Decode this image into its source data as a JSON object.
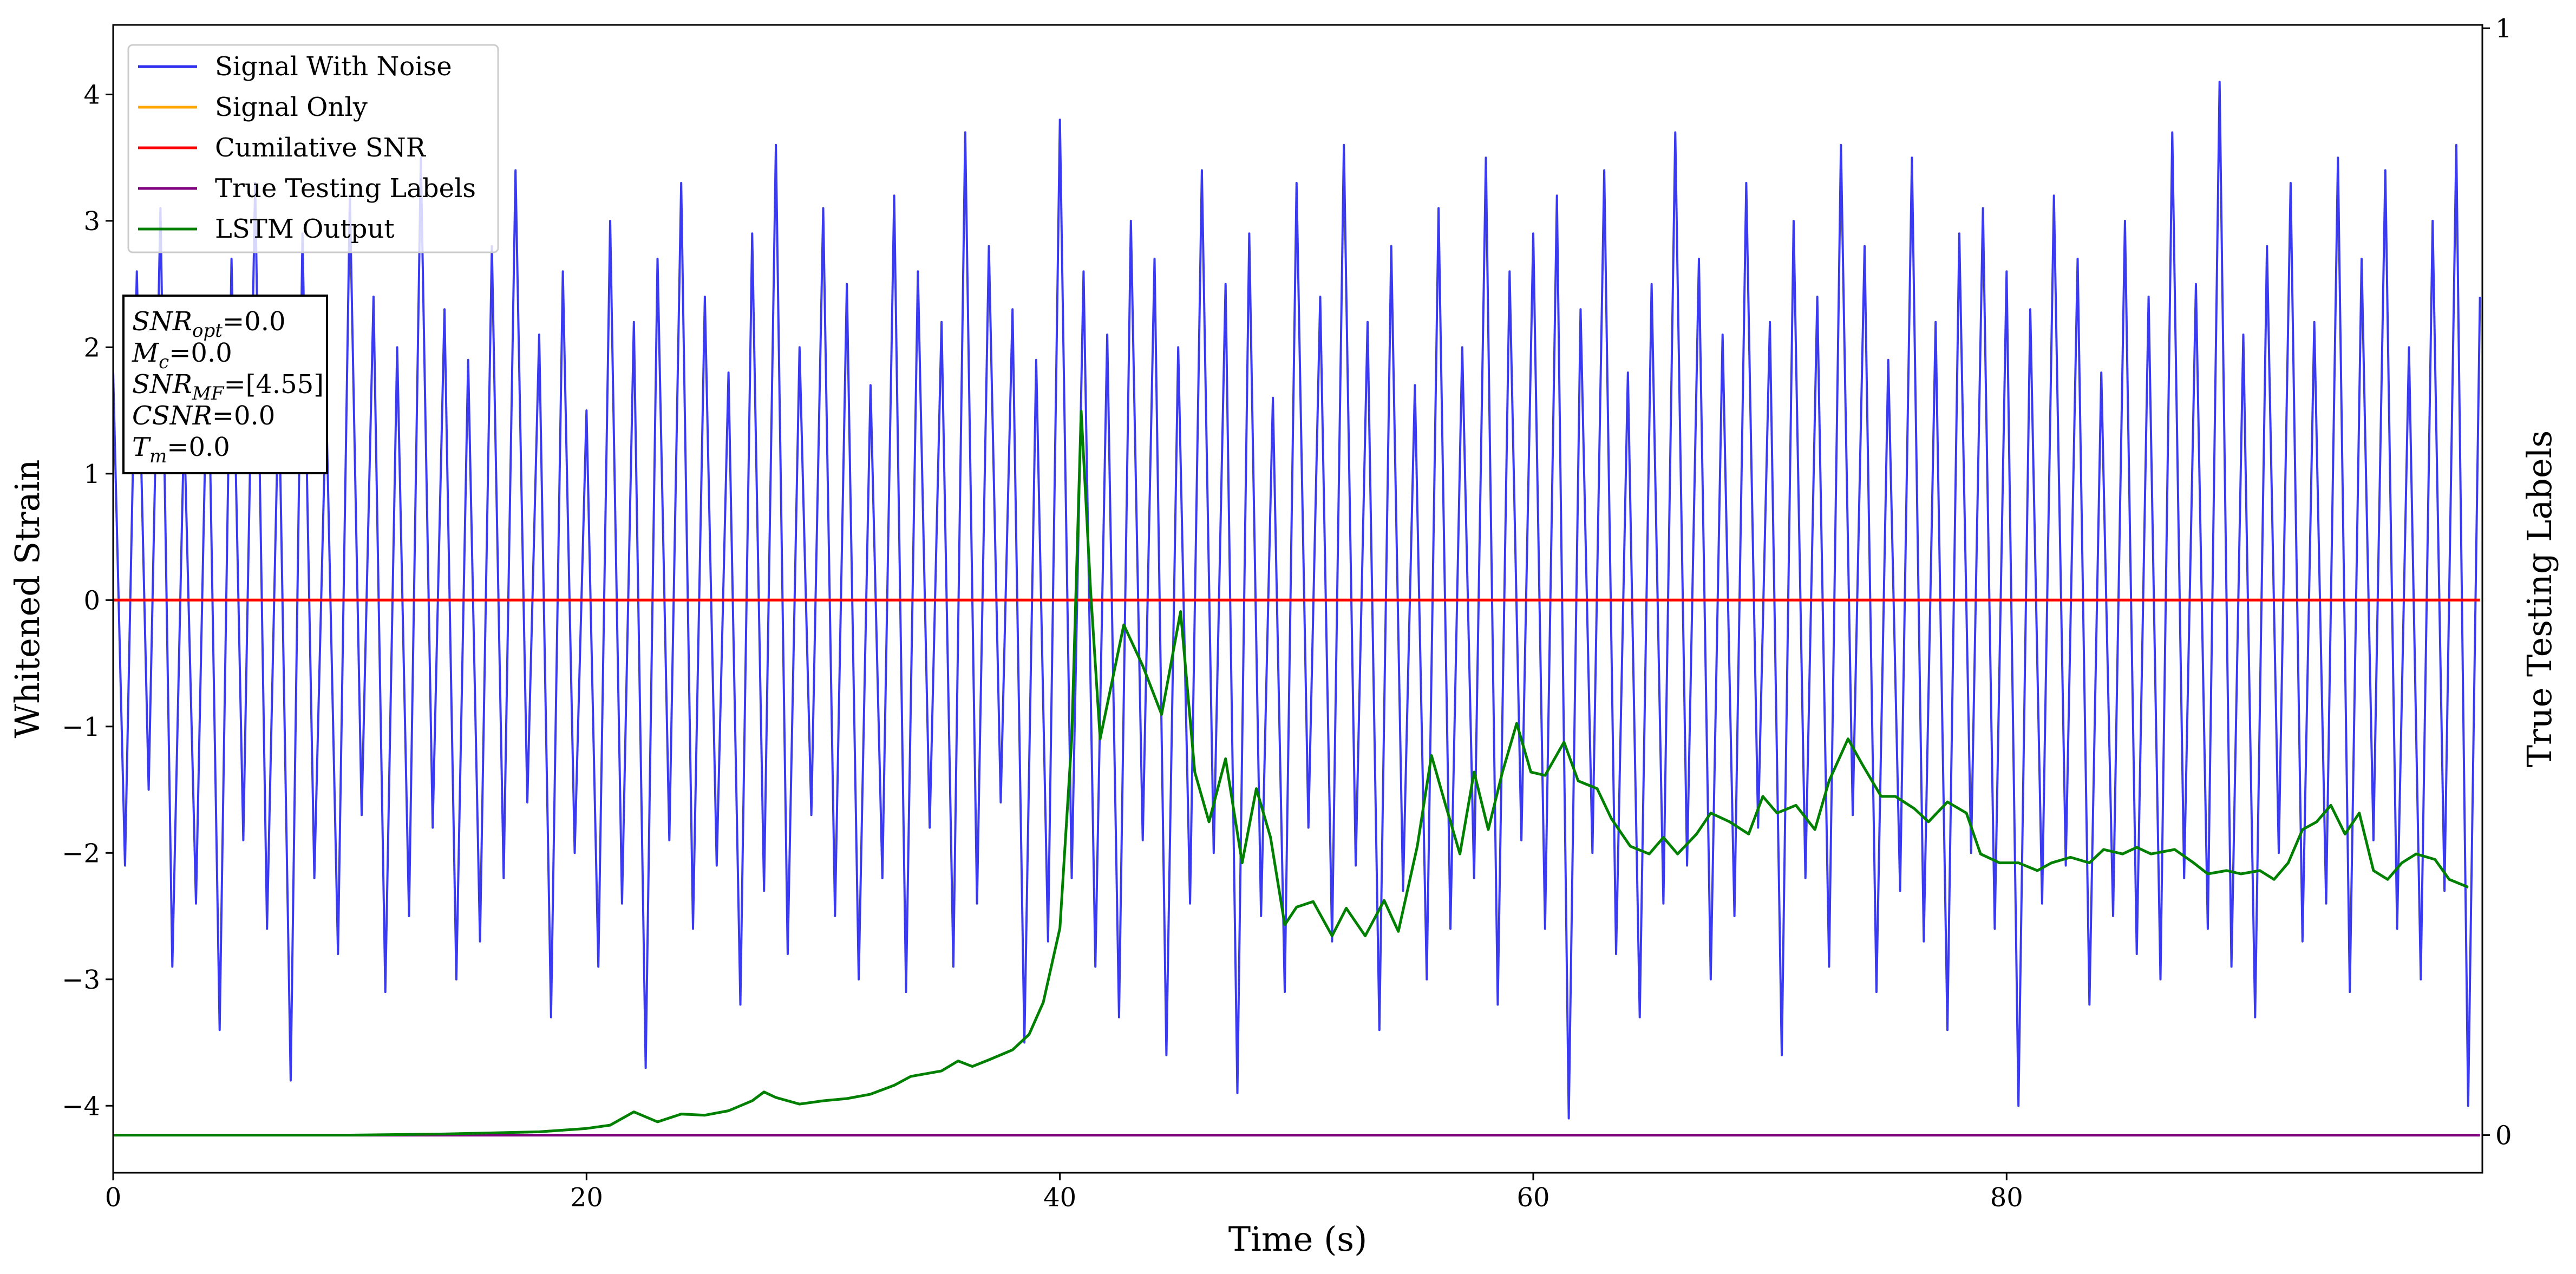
{
  "chart_data": {
    "type": "line",
    "xlabel": "Time (s)",
    "ylabel": "Whitened Strain",
    "y2label": "True Testing Labels",
    "xlim": [
      0,
      100.1
    ],
    "xticks": [
      0,
      20,
      40,
      60,
      80
    ],
    "ylim": [
      -4.53,
      4.55
    ],
    "yticks": [
      {
        "value": -4,
        "label": "−4"
      },
      {
        "value": -3,
        "label": "−3"
      },
      {
        "value": -2,
        "label": "−2"
      },
      {
        "value": -1,
        "label": "−1"
      },
      0,
      1,
      2,
      3,
      4
    ],
    "y2lim": [
      -0.034,
      1.003
    ],
    "y2ticks": [
      0,
      1
    ],
    "legend": "upper left",
    "annotation": [
      [
        "SNR",
        "opt",
        "=0.0"
      ],
      [
        "M",
        "c",
        "=0.0"
      ],
      [
        "SNR",
        "MF",
        "=[4.55]"
      ],
      [
        "CSNR",
        "=0.0"
      ],
      [
        "T",
        "m",
        "=0.0"
      ]
    ],
    "series": [
      {
        "name": "Signal With Noise",
        "color": "#2f2ff0",
        "axis": "y",
        "x": [
          0,
          0.5,
          1,
          1.5,
          2,
          2.5,
          3,
          3.5,
          4,
          4.5,
          5,
          5.5,
          6,
          6.5,
          7,
          7.5,
          8,
          8.5,
          9,
          9.5,
          10,
          10.5,
          11,
          11.5,
          12,
          12.5,
          13,
          13.5,
          14,
          14.5,
          15,
          15.5,
          16,
          16.5,
          17,
          17.5,
          18,
          18.5,
          19,
          19.5,
          20,
          20.5,
          21,
          21.5,
          22,
          22.5,
          23,
          23.5,
          24,
          24.5,
          25,
          25.5,
          26,
          26.5,
          27,
          27.5,
          28,
          28.5,
          29,
          29.5,
          30,
          30.5,
          31,
          31.5,
          32,
          32.5,
          33,
          33.5,
          34,
          34.5,
          35,
          35.5,
          36,
          36.5,
          37,
          37.5,
          38,
          38.5,
          39,
          39.5,
          40,
          40.5,
          41,
          41.5,
          42,
          42.5,
          43,
          43.5,
          44,
          44.5,
          45,
          45.5,
          46,
          46.5,
          47,
          47.5,
          48,
          48.5,
          49,
          49.5,
          50,
          50.5,
          51,
          51.5,
          52,
          52.5,
          53,
          53.5,
          54,
          54.5,
          55,
          55.5,
          56,
          56.5,
          57,
          57.5,
          58,
          58.5,
          59,
          59.5,
          60,
          60.5,
          61,
          61.5,
          62,
          62.5,
          63,
          63.5,
          64,
          64.5,
          65,
          65.5,
          66,
          66.5,
          67,
          67.5,
          68,
          68.5,
          69,
          69.5,
          70,
          70.5,
          71,
          71.5,
          72,
          72.5,
          73,
          73.5,
          74,
          74.5,
          75,
          75.5,
          76,
          76.5,
          77,
          77.5,
          78,
          78.5,
          79,
          79.5,
          80,
          80.5,
          81,
          81.5,
          82,
          82.5,
          83,
          83.5,
          84,
          84.5,
          85,
          85.5,
          86,
          86.5,
          87,
          87.5,
          88,
          88.5,
          89,
          89.5,
          90,
          90.5,
          91,
          91.5,
          92,
          92.5,
          93,
          93.5,
          94,
          94.5,
          95,
          95.5,
          96,
          96.5,
          97,
          97.5,
          98,
          98.5,
          99,
          99.5,
          100
        ],
        "values": [
          1.8,
          -2.1,
          2.6,
          -1.5,
          3.1,
          -2.9,
          1.4,
          -2.4,
          2.2,
          -3.4,
          2.7,
          -1.9,
          3.3,
          -2.6,
          1.7,
          -3.8,
          2.9,
          -2.2,
          1.6,
          -2.8,
          3.2,
          -1.7,
          2.4,
          -3.1,
          2.0,
          -2.5,
          3.5,
          -1.8,
          2.3,
          -3.0,
          1.9,
          -2.7,
          2.8,
          -2.2,
          3.4,
          -1.6,
          2.1,
          -3.3,
          2.6,
          -2.0,
          1.5,
          -2.9,
          3.0,
          -2.4,
          2.2,
          -3.7,
          2.7,
          -1.9,
          3.3,
          -2.6,
          2.4,
          -2.1,
          1.8,
          -3.2,
          2.9,
          -2.3,
          3.6,
          -2.8,
          2.0,
          -1.7,
          3.1,
          -2.5,
          2.5,
          -3.0,
          1.7,
          -2.2,
          3.2,
          -3.1,
          2.6,
          -1.8,
          2.2,
          -2.9,
          3.7,
          -2.4,
          2.8,
          -1.6,
          2.3,
          -3.5,
          1.9,
          -2.7,
          3.8,
          -2.2,
          2.6,
          -2.9,
          2.1,
          -3.3,
          3.0,
          -1.9,
          2.7,
          -3.6,
          2.0,
          -2.4,
          3.4,
          -2.0,
          2.5,
          -3.9,
          2.9,
          -2.5,
          1.6,
          -3.1,
          3.3,
          -1.8,
          2.4,
          -2.7,
          3.6,
          -2.1,
          2.2,
          -3.4,
          2.8,
          -2.3,
          1.7,
          -3.0,
          3.1,
          -2.6,
          2.0,
          -2.2,
          3.5,
          -3.2,
          2.6,
          -1.9,
          2.9,
          -2.6,
          3.2,
          -4.1,
          2.3,
          -2.0,
          3.4,
          -2.8,
          1.8,
          -3.3,
          2.5,
          -2.4,
          3.7,
          -2.1,
          2.7,
          -3.0,
          2.1,
          -2.5,
          3.3,
          -1.8,
          2.2,
          -3.6,
          3.0,
          -2.2,
          2.4,
          -2.9,
          3.6,
          -1.7,
          2.8,
          -3.1,
          1.9,
          -2.3,
          3.5,
          -2.7,
          2.2,
          -3.4,
          2.9,
          -2.0,
          3.1,
          -2.6,
          2.6,
          -4.0,
          2.3,
          -2.4,
          3.2,
          -2.1,
          2.7,
          -3.2,
          1.8,
          -2.5,
          3.0,
          -2.8,
          2.4,
          -3.0,
          3.7,
          -2.2,
          2.5,
          -2.6,
          4.1,
          -2.9,
          2.1,
          -3.3,
          2.8,
          -2.0,
          3.3,
          -2.7,
          2.2,
          -2.4,
          3.5,
          -3.1,
          2.7,
          -1.9,
          3.4,
          -2.6,
          2.0,
          -3.0,
          3.0,
          -2.3,
          3.6,
          -4.0,
          2.4
        ]
      },
      {
        "name": "Signal Only",
        "color": "orange",
        "axis": "y",
        "x": [
          0,
          100
        ],
        "values": [
          0,
          0
        ]
      },
      {
        "name": "Cumilative SNR",
        "color": "red",
        "axis": "y",
        "x": [
          0,
          100
        ],
        "values": [
          0,
          0
        ]
      },
      {
        "name": "True Testing Labels",
        "color": "purple",
        "axis": "y2",
        "x": [
          0,
          100
        ],
        "values": [
          0,
          0
        ]
      },
      {
        "name": "LSTM Output",
        "color": "green",
        "axis": "y2",
        "x": [
          0,
          10,
          14,
          18,
          20,
          21,
          22,
          23,
          24,
          25,
          26,
          27,
          27.5,
          28,
          29,
          30,
          31,
          32,
          33,
          33.7,
          35,
          35.7,
          36.3,
          37,
          38,
          38.7,
          39.3,
          40,
          40.5,
          40.9,
          41.3,
          41.7,
          42.7,
          43.5,
          44.3,
          45.1,
          45.7,
          46.3,
          47,
          47.7,
          48.3,
          48.9,
          49.5,
          50,
          50.7,
          51.5,
          52.1,
          52.9,
          53.7,
          54.3,
          55.1,
          55.7,
          56.3,
          56.9,
          57.5,
          58.1,
          58.7,
          59.3,
          59.9,
          60.5,
          61.3,
          61.9,
          62.7,
          63.3,
          64.1,
          64.9,
          65.5,
          66.1,
          66.9,
          67.5,
          68.3,
          69.1,
          69.7,
          70.3,
          71.1,
          71.9,
          72.5,
          73.3,
          73.9,
          74.7,
          75.3,
          76.1,
          76.7,
          77.5,
          78.3,
          78.9,
          79.7,
          80.5,
          81.3,
          81.9,
          82.7,
          83.5,
          84.1,
          84.9,
          85.5,
          86.1,
          87.1,
          87.9,
          88.5,
          89.3,
          89.9,
          90.7,
          91.3,
          91.9,
          92.5,
          93.1,
          93.7,
          94.3,
          94.9,
          95.5,
          96.1,
          96.7,
          97.3,
          98.1,
          98.7,
          99.5
        ],
        "values": [
          0,
          0,
          0.001,
          0.003,
          0.006,
          0.009,
          0.021,
          0.012,
          0.019,
          0.018,
          0.022,
          0.031,
          0.039,
          0.034,
          0.028,
          0.031,
          0.033,
          0.037,
          0.045,
          0.053,
          0.058,
          0.067,
          0.062,
          0.068,
          0.077,
          0.091,
          0.12,
          0.187,
          0.358,
          0.654,
          0.491,
          0.358,
          0.461,
          0.424,
          0.38,
          0.473,
          0.328,
          0.283,
          0.34,
          0.246,
          0.313,
          0.269,
          0.19,
          0.206,
          0.211,
          0.18,
          0.205,
          0.18,
          0.212,
          0.184,
          0.261,
          0.343,
          0.298,
          0.254,
          0.328,
          0.276,
          0.328,
          0.372,
          0.328,
          0.325,
          0.355,
          0.32,
          0.313,
          0.286,
          0.261,
          0.254,
          0.269,
          0.254,
          0.272,
          0.291,
          0.283,
          0.272,
          0.306,
          0.291,
          0.298,
          0.276,
          0.32,
          0.358,
          0.335,
          0.306,
          0.306,
          0.295,
          0.283,
          0.301,
          0.291,
          0.254,
          0.246,
          0.246,
          0.239,
          0.246,
          0.251,
          0.246,
          0.258,
          0.254,
          0.26,
          0.254,
          0.258,
          0.246,
          0.236,
          0.239,
          0.236,
          0.239,
          0.231,
          0.246,
          0.276,
          0.283,
          0.298,
          0.272,
          0.291,
          0.239,
          0.231,
          0.246,
          0.254,
          0.249,
          0.231,
          0.224
        ]
      }
    ]
  }
}
